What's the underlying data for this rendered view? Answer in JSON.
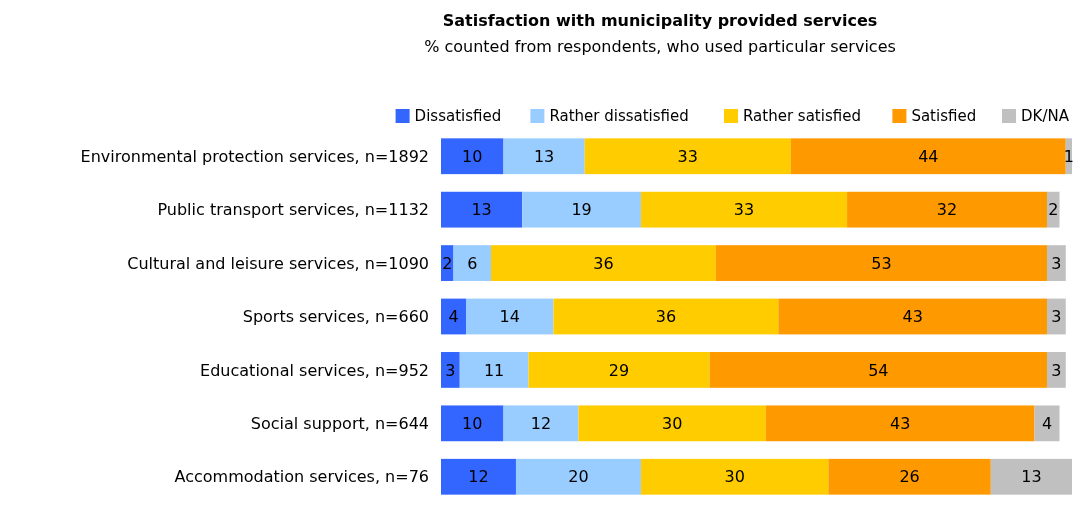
{
  "chart_data": {
    "type": "bar",
    "orientation": "horizontal",
    "stacked": true,
    "title": "Satisfaction with municipality provided services",
    "subtitle": "% counted from respondents, who used particular services",
    "categories": [
      "Environmental protection services, n=1892",
      "Public transport services, n=1132",
      "Cultural and leisure services, n=1090",
      "Sports services, n=660",
      "Educational services, n=952",
      "Social support, n=644",
      "Accommodation services, n=76"
    ],
    "series": [
      {
        "name": "Dissatisfied",
        "color": "#3366ff",
        "values": [
          10,
          13,
          2,
          4,
          3,
          10,
          12
        ]
      },
      {
        "name": "Rather dissatisfied",
        "color": "#99ccff",
        "values": [
          13,
          19,
          6,
          14,
          11,
          12,
          20
        ]
      },
      {
        "name": "Rather satisfied",
        "color": "#ffcc00",
        "values": [
          33,
          33,
          36,
          36,
          29,
          30,
          30
        ]
      },
      {
        "name": "Satisfied",
        "color": "#ff9900",
        "values": [
          44,
          32,
          53,
          43,
          54,
          43,
          26
        ]
      },
      {
        "name": "DK/NA",
        "color": "#c0c0c0",
        "values": [
          1,
          2,
          3,
          3,
          3,
          4,
          13
        ]
      }
    ],
    "data_labels": true,
    "legend": "top right",
    "grid": false
  }
}
